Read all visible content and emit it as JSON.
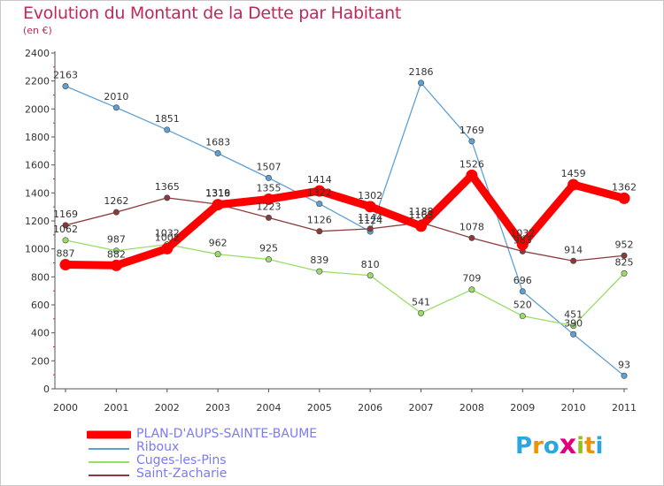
{
  "title": "Evolution du Montant de la Dette par Habitant",
  "unit": "(en €)",
  "logo": {
    "letters": [
      "P",
      "r",
      "o",
      "x",
      "i",
      "t",
      "i"
    ],
    "colors": [
      "#2aa7e0",
      "#f39200",
      "#2aa7e0",
      "#e2007a",
      "#95c11f",
      "#f39200",
      "#2aa7e0"
    ]
  },
  "chart_data": {
    "type": "line",
    "categories": [
      "2000",
      "2001",
      "2002",
      "2003",
      "2004",
      "2005",
      "2006",
      "2007",
      "2008",
      "2009",
      "2010",
      "2011"
    ],
    "ylim": [
      0,
      2400
    ],
    "yticks": [
      0,
      200,
      400,
      600,
      800,
      1000,
      1200,
      1400,
      1600,
      1800,
      2000,
      2200,
      2400
    ],
    "grid": false,
    "legend_position": "bottom-left",
    "series": [
      {
        "name": "PLAN-D'AUPS-SAINTE-BAUME",
        "color": "#ff0000",
        "values": [
          887,
          882,
          1002,
          1316,
          1355,
          1414,
          1302,
          1163,
          1526,
          1032,
          1459,
          1362
        ],
        "labels": [
          "887",
          "882",
          "1002",
          "1316",
          "1355",
          "1414",
          "1302",
          "1163",
          "1526",
          "1032",
          "1459",
          "1362"
        ]
      },
      {
        "name": "Riboux",
        "color": "#5fa0d4",
        "values": [
          2163,
          2010,
          1851,
          1683,
          1507,
          1322,
          1124,
          2186,
          1769,
          696,
          390,
          93
        ],
        "labels": [
          "2163",
          "2010",
          "1851",
          "1683",
          "1507",
          "1322",
          "1124",
          "2186",
          "1769",
          "696",
          "390",
          "93"
        ]
      },
      {
        "name": "Cuges-les-Pins",
        "color": "#99dd66",
        "values": [
          1062,
          987,
          1032,
          962,
          925,
          839,
          810,
          541,
          709,
          520,
          451,
          825
        ],
        "labels": [
          "1062",
          "987",
          "1032",
          "962",
          "925",
          "839",
          "810",
          "541",
          "709",
          "520",
          "451",
          "825"
        ]
      },
      {
        "name": "Saint-Zacharie",
        "color": "#8b3a3a",
        "values": [
          1169,
          1262,
          1365,
          1319,
          1223,
          1126,
          1144,
          1188,
          1078,
          983,
          914,
          952
        ],
        "labels": [
          "1169",
          "1262",
          "1365",
          "1319",
          "1223",
          "1126",
          "1144",
          "1188",
          "1078",
          "983",
          "914",
          "952"
        ]
      }
    ]
  }
}
